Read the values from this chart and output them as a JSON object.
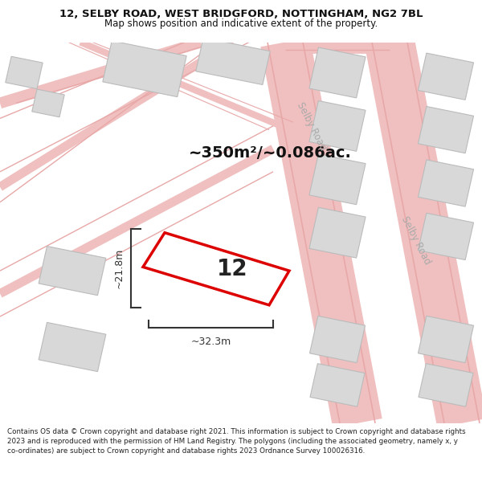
{
  "title_line1": "12, SELBY ROAD, WEST BRIDGFORD, NOTTINGHAM, NG2 7BL",
  "title_line2": "Map shows position and indicative extent of the property.",
  "footer_text": "Contains OS data © Crown copyright and database right 2021. This information is subject to Crown copyright and database rights 2023 and is reproduced with the permission of HM Land Registry. The polygons (including the associated geometry, namely x, y co-ordinates) are subject to Crown copyright and database rights 2023 Ordnance Survey 100026316.",
  "area_label": "~350m²/~0.086ac.",
  "width_label": "~32.3m",
  "height_label": "~21.8m",
  "property_number": "12",
  "road_color": "#f0c0c0",
  "road_edge_color": "#e8a8a8",
  "building_color": "#d8d8d8",
  "building_edge": "#bbbbbb",
  "road_label_color": "#aaaaaa",
  "highlight_color": "#dd0000",
  "highlight_fill": "#ffffff",
  "dimension_color": "#333333",
  "title_color": "#111111",
  "footer_color": "#222222"
}
